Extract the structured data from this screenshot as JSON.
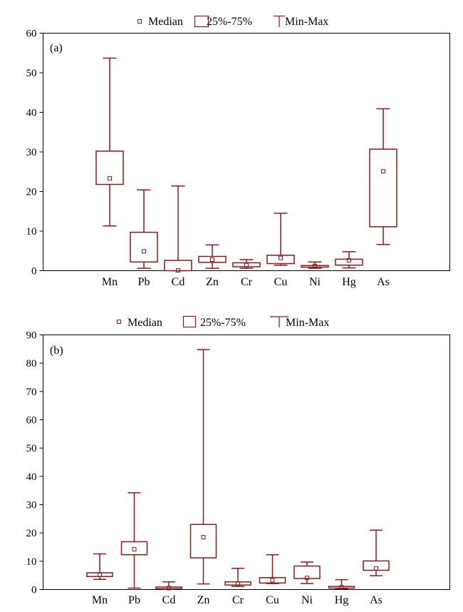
{
  "legend": {
    "median": "Median",
    "box": "25%-75%",
    "whisker": "Min-Max"
  },
  "colors": {
    "series": "#8b1a1a",
    "axis": "#000000"
  },
  "chart_data": [
    {
      "type": "boxplot",
      "panel_label": "(a)",
      "categories": [
        "Mn",
        "Pb",
        "Cd",
        "Zn",
        "Cr",
        "Cu",
        "Ni",
        "Hg",
        "As"
      ],
      "ylim": [
        0,
        60
      ],
      "yticks": [
        0,
        10,
        20,
        30,
        40,
        50,
        60
      ],
      "grid": false,
      "legend_position": "top",
      "series": [
        {
          "category": "Mn",
          "min": 11.3,
          "q1": 21.8,
          "median": 23.3,
          "q3": 30.2,
          "max": 53.7
        },
        {
          "category": "Pb",
          "min": 0.6,
          "q1": 2.2,
          "median": 4.9,
          "q3": 9.7,
          "max": 20.4
        },
        {
          "category": "Cd",
          "min": 0.0,
          "q1": 0.0,
          "median": 0.1,
          "q3": 2.6,
          "max": 21.4
        },
        {
          "category": "Zn",
          "min": 0.6,
          "q1": 2.1,
          "median": 2.8,
          "q3": 3.6,
          "max": 6.5
        },
        {
          "category": "Cr",
          "min": 0.6,
          "q1": 1.0,
          "median": 1.4,
          "q3": 2.0,
          "max": 2.8
        },
        {
          "category": "Cu",
          "min": 1.4,
          "q1": 1.8,
          "median": 3.2,
          "q3": 3.9,
          "max": 14.5
        },
        {
          "category": "Ni",
          "min": 0.6,
          "q1": 0.9,
          "median": 1.2,
          "q3": 1.3,
          "max": 2.2
        },
        {
          "category": "Hg",
          "min": 0.7,
          "q1": 1.4,
          "median": 2.6,
          "q3": 2.9,
          "max": 4.8
        },
        {
          "category": "As",
          "min": 6.6,
          "q1": 11.1,
          "median": 25.1,
          "q3": 30.7,
          "max": 40.9
        }
      ]
    },
    {
      "type": "boxplot",
      "panel_label": "(b)",
      "categories": [
        "Mn",
        "Pb",
        "Cd",
        "Zn",
        "Cr",
        "Cu",
        "Ni",
        "Hg",
        "As"
      ],
      "ylim": [
        0,
        90
      ],
      "yticks": [
        0,
        10,
        20,
        30,
        40,
        50,
        60,
        70,
        80,
        90
      ],
      "grid": false,
      "legend_position": "top",
      "series": [
        {
          "category": "Mn",
          "min": 3.6,
          "q1": 4.6,
          "median": 5.2,
          "q3": 5.9,
          "max": 12.6
        },
        {
          "category": "Pb",
          "min": 0.5,
          "q1": 12.3,
          "median": 14.2,
          "q3": 16.9,
          "max": 34.2
        },
        {
          "category": "Cd",
          "min": 0.1,
          "q1": 0.3,
          "median": 0.5,
          "q3": 0.9,
          "max": 2.7
        },
        {
          "category": "Zn",
          "min": 2.0,
          "q1": 11.2,
          "median": 18.5,
          "q3": 23.0,
          "max": 84.8
        },
        {
          "category": "Cr",
          "min": 1.1,
          "q1": 1.6,
          "median": 2.1,
          "q3": 2.7,
          "max": 7.5
        },
        {
          "category": "Cu",
          "min": 2.1,
          "q1": 2.3,
          "median": 3.3,
          "q3": 4.2,
          "max": 12.3
        },
        {
          "category": "Ni",
          "min": 2.1,
          "q1": 3.9,
          "median": 4.1,
          "q3": 8.3,
          "max": 9.7
        },
        {
          "category": "Hg",
          "min": 0.3,
          "q1": 0.5,
          "median": 0.8,
          "q3": 1.1,
          "max": 3.5
        },
        {
          "category": "As",
          "min": 4.9,
          "q1": 6.8,
          "median": 7.5,
          "q3": 10.1,
          "max": 21.0
        }
      ]
    }
  ]
}
